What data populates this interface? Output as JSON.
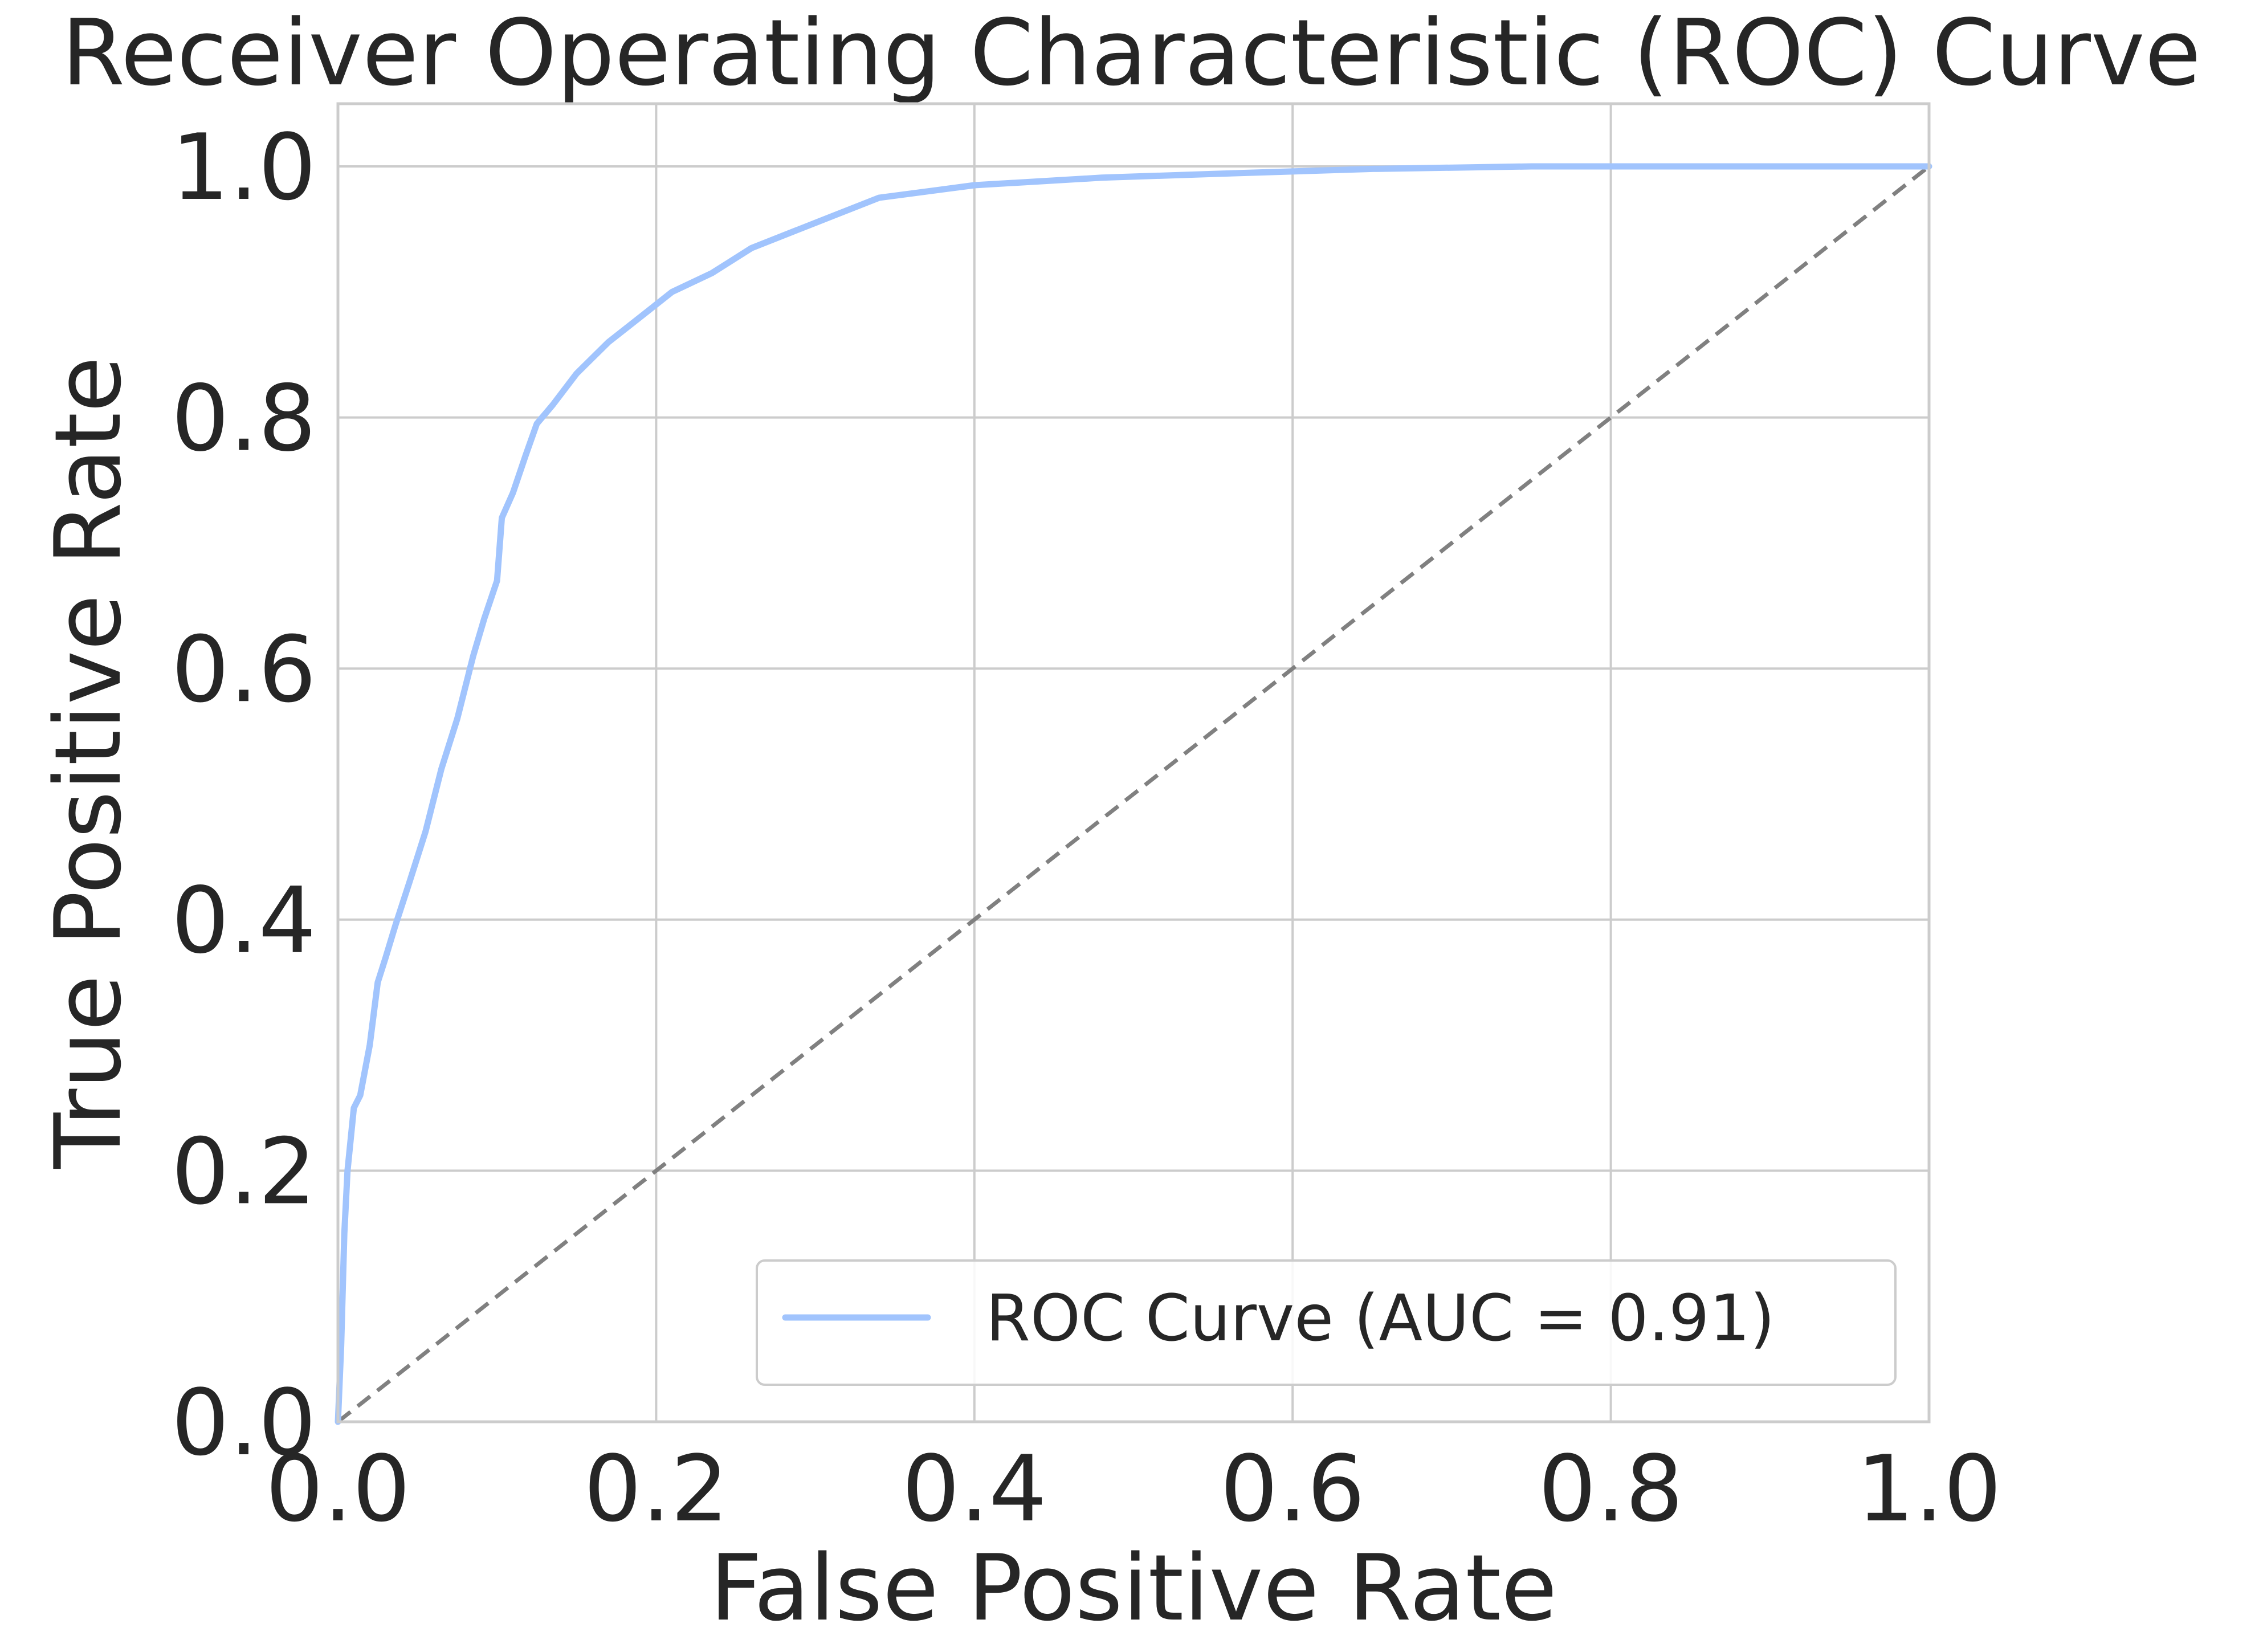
{
  "chart_data": {
    "type": "line",
    "title": "Receiver Operating Characteristic (ROC) Curve",
    "xlabel": "False Positive Rate",
    "ylabel": "True Positive Rate",
    "xlim": [
      0.0,
      1.0
    ],
    "ylim": [
      0.0,
      1.0
    ],
    "grid": true,
    "legend_position": "lower-right",
    "x_ticks": [
      "0.0",
      "0.2",
      "0.4",
      "0.6",
      "0.8",
      "1.0"
    ],
    "y_ticks": [
      "0.0",
      "0.2",
      "0.4",
      "0.6",
      "0.8",
      "1.0"
    ],
    "series": [
      {
        "name": "ROC Curve (AUC = 0.91)",
        "color": "#a1c4fd",
        "style": "solid",
        "x": [
          0.0,
          0.002,
          0.004,
          0.006,
          0.01,
          0.014,
          0.02,
          0.025,
          0.03,
          0.036,
          0.045,
          0.055,
          0.065,
          0.075,
          0.085,
          0.092,
          0.1,
          0.103,
          0.11,
          0.118,
          0.125,
          0.135,
          0.15,
          0.17,
          0.19,
          0.21,
          0.235,
          0.26,
          0.3,
          0.34,
          0.4,
          0.48,
          0.55,
          0.65,
          0.75,
          0.85,
          1.0
        ],
        "y": [
          0.0,
          0.06,
          0.15,
          0.2,
          0.25,
          0.26,
          0.3,
          0.35,
          0.37,
          0.395,
          0.43,
          0.47,
          0.52,
          0.56,
          0.61,
          0.64,
          0.67,
          0.72,
          0.74,
          0.77,
          0.795,
          0.81,
          0.835,
          0.86,
          0.88,
          0.9,
          0.915,
          0.935,
          0.955,
          0.975,
          0.985,
          0.991,
          0.994,
          0.998,
          1.0,
          1.0,
          1.0
        ]
      },
      {
        "name": "",
        "color": "#808080",
        "style": "dashed",
        "x": [
          0.0,
          1.0
        ],
        "y": [
          0.0,
          1.0
        ]
      }
    ]
  }
}
